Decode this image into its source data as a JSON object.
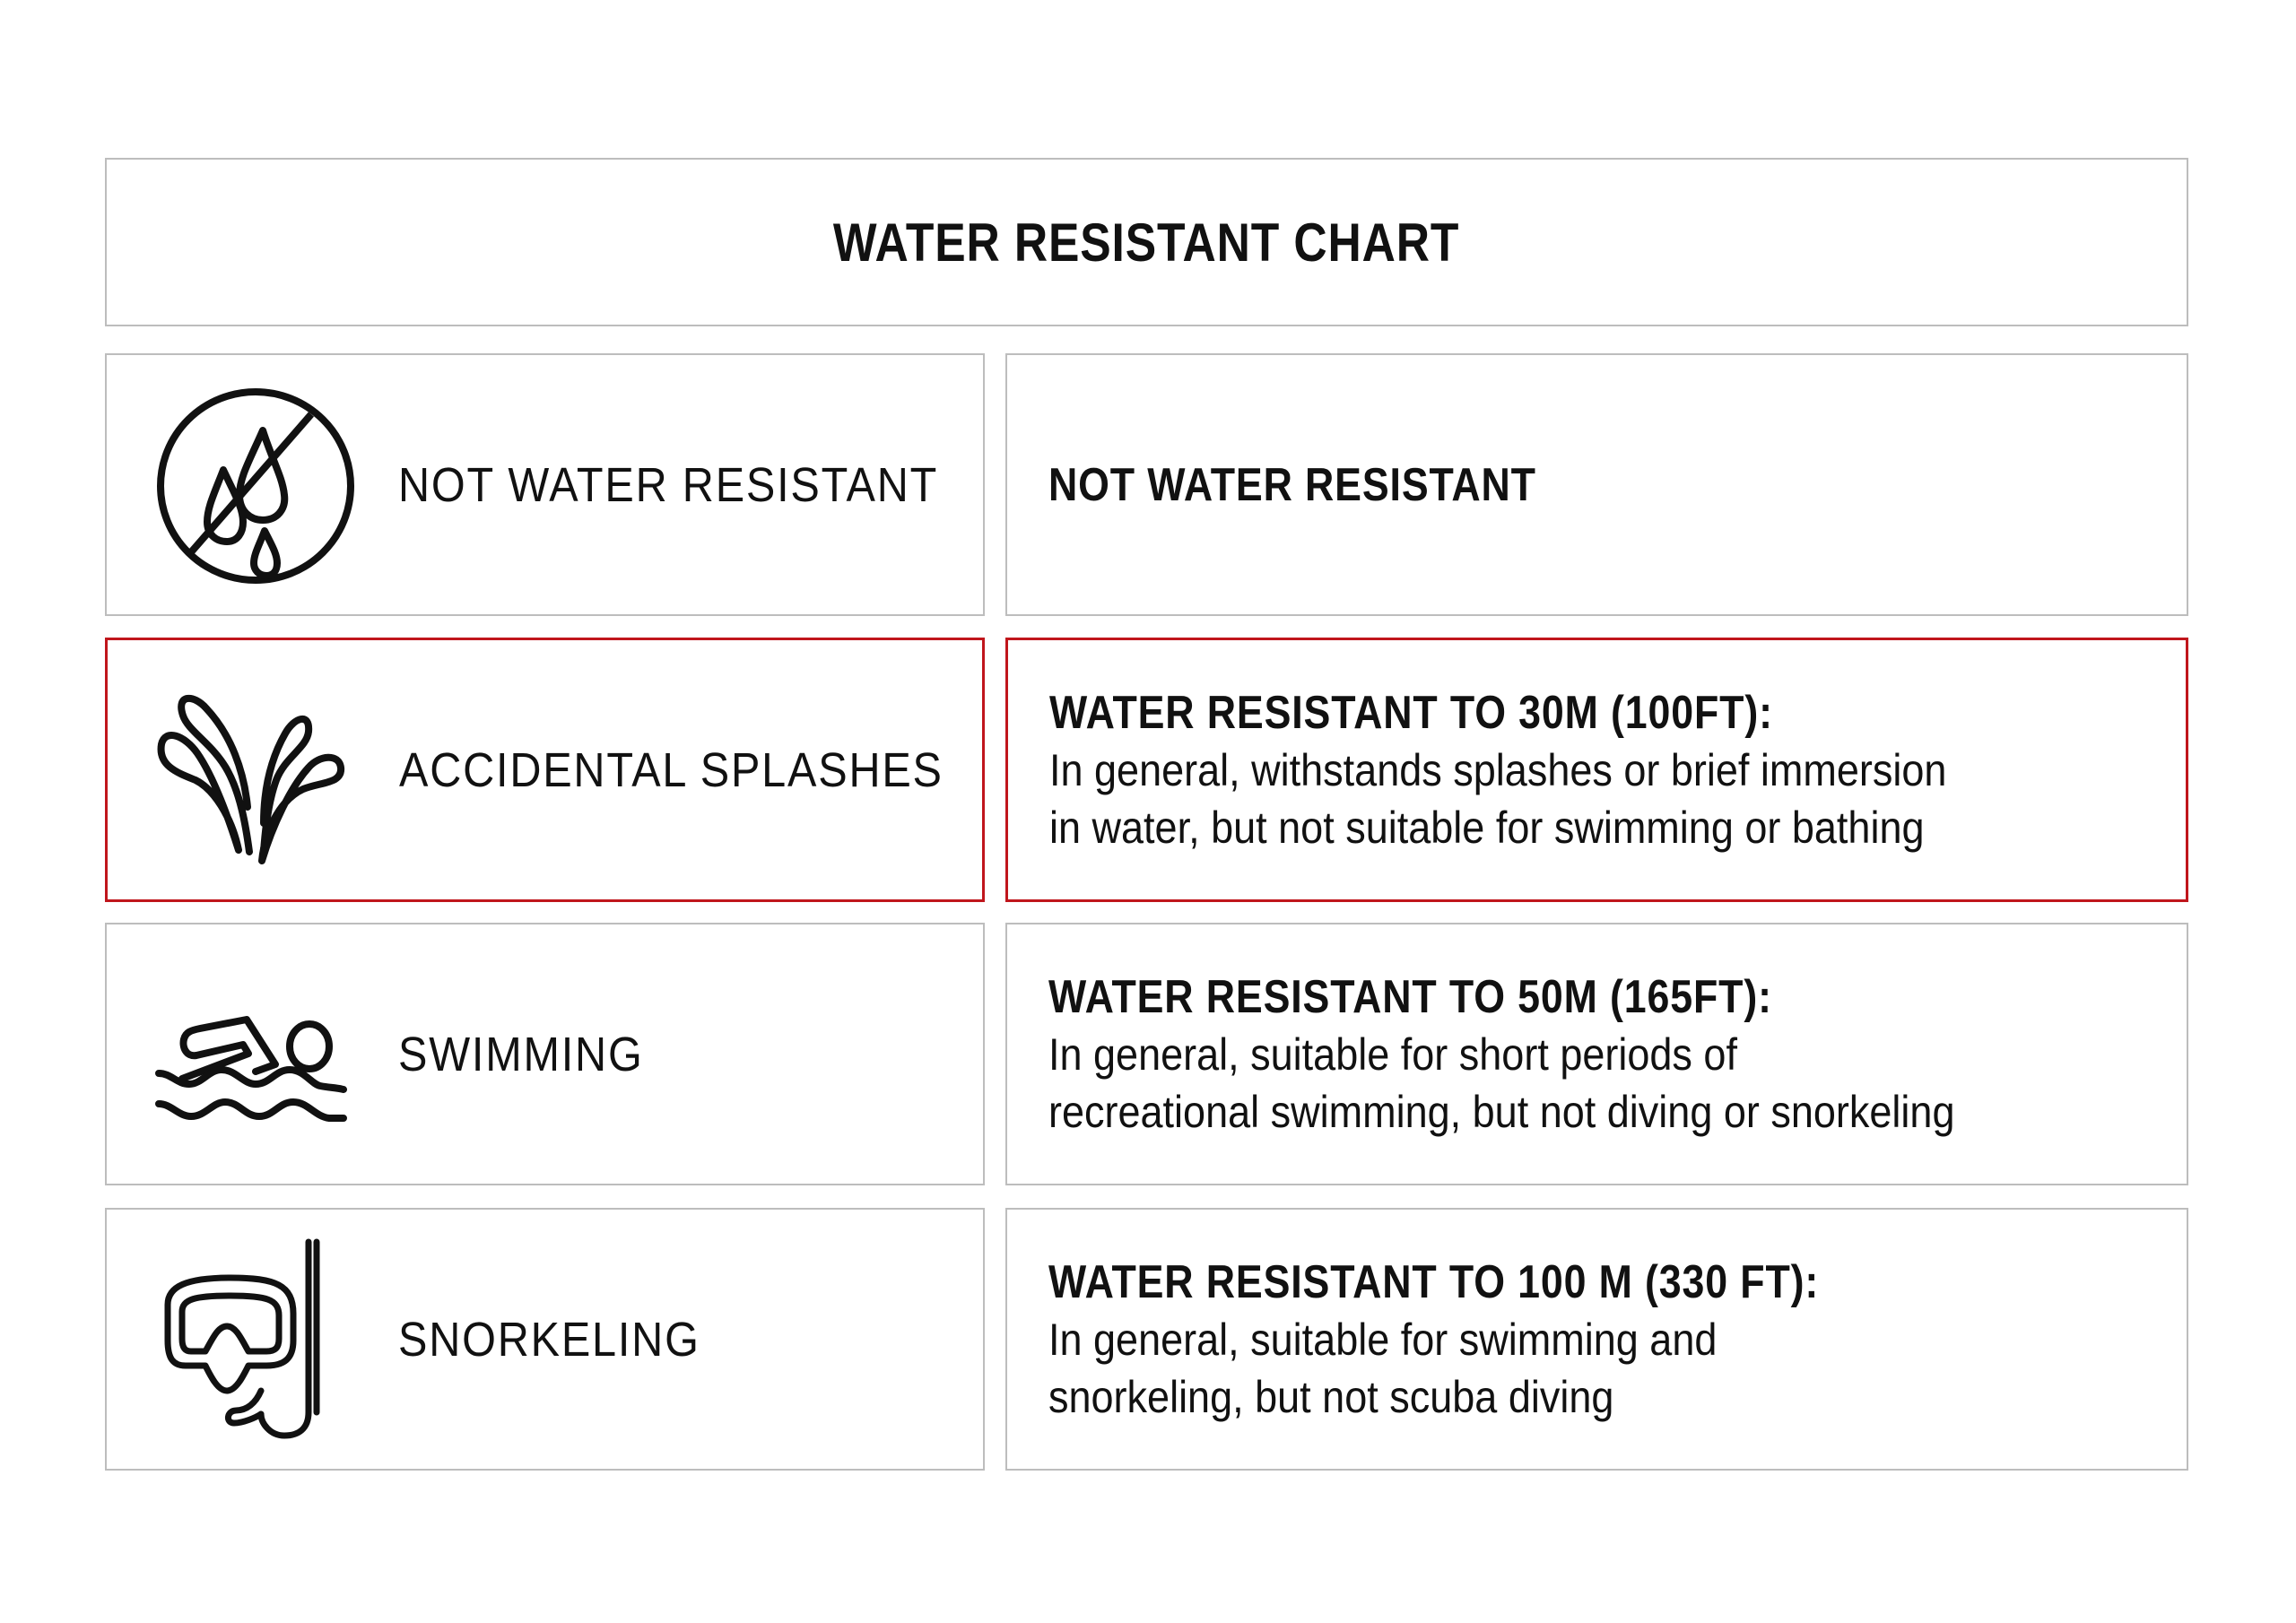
{
  "title": "WATER RESISTANT CHART",
  "accent_color": "#c0161c",
  "rows": [
    {
      "icon": "no-water-drops-icon",
      "label": "NOT WATER RESISTANT",
      "heading": "NOT WATER RESISTANT",
      "lines": [],
      "highlighted": false
    },
    {
      "icon": "splash-icon",
      "label": "ACCIDENTAL SPLASHES",
      "heading": "WATER RESISTANT TO 30M (100FT):",
      "lines": [
        "In general, withstands splashes or brief immersion",
        "in water, but not suitable for swimming or bathing"
      ],
      "highlighted": true
    },
    {
      "icon": "swimmer-icon",
      "label": "SWIMMING",
      "heading": "WATER RESISTANT TO 50M (165FT):",
      "lines": [
        "In general, suitable for short periods of",
        "recreational swimming, but not diving or snorkeling"
      ],
      "highlighted": false
    },
    {
      "icon": "snorkel-mask-icon",
      "label": "SNORKELING",
      "heading": "WATER RESISTANT TO 100 M (330 FT):",
      "lines": [
        "In general, suitable for swimming and",
        "snorkeling, but not scuba diving"
      ],
      "highlighted": false
    }
  ]
}
